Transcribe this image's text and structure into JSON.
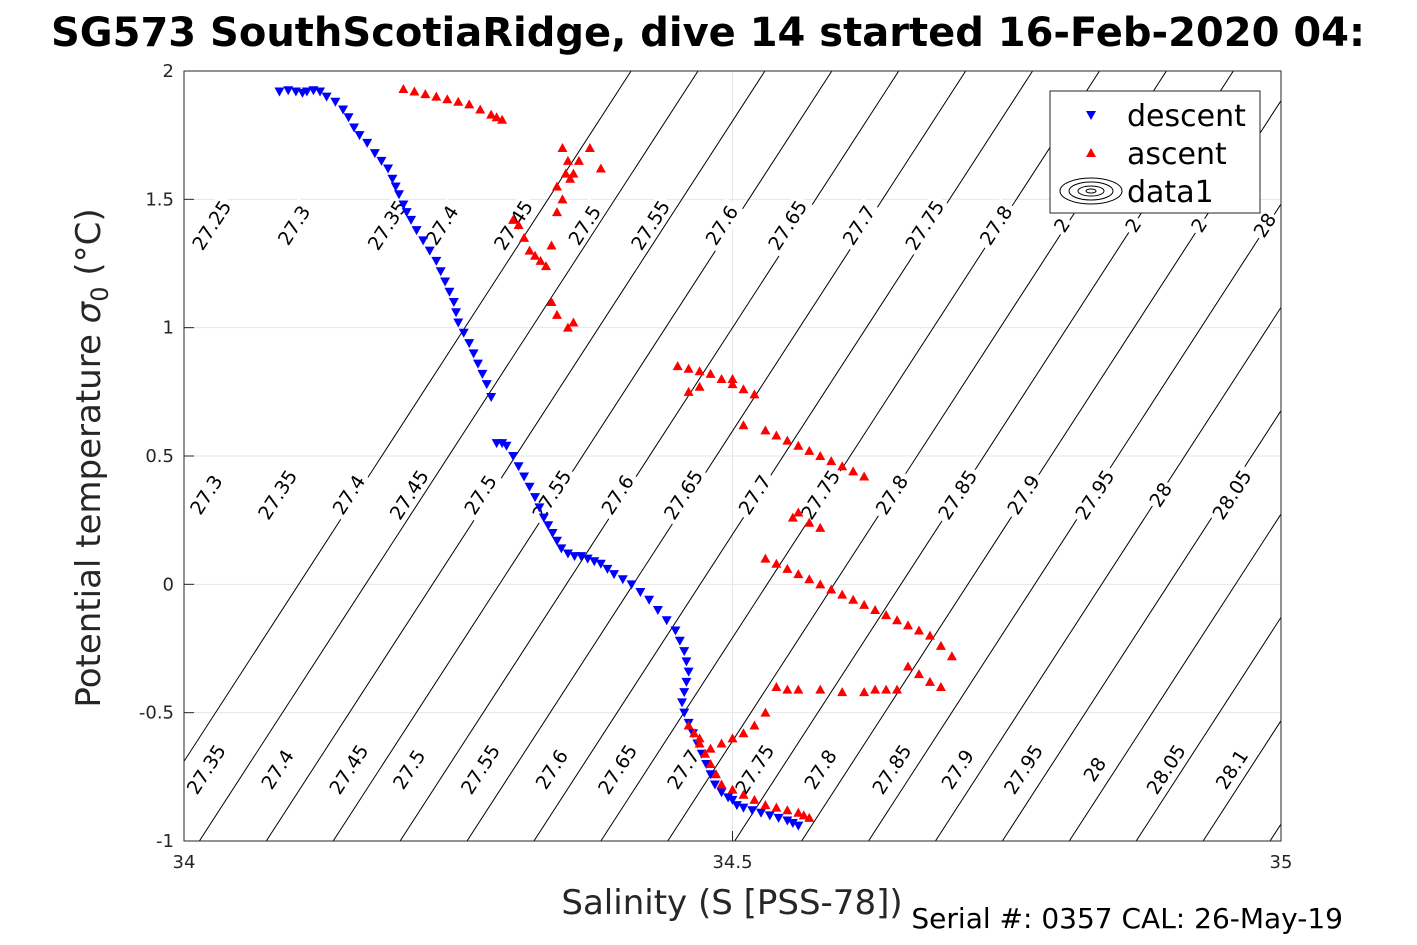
{
  "chart_data": {
    "type": "scatter",
    "title": "SG573 SouthScotiaRidge, dive 14 started 16-Feb-2020 04:",
    "xlabel": "Salinity (S [PSS-78])",
    "ylabel": "Potential temperature σ 0 (°C)",
    "ylabel_parts": {
      "main": "Potential temperature ",
      "greek": "σ",
      "sub": "0",
      "unit": " (°C)"
    },
    "footer": "Serial #: 0357  CAL: 26-May-19",
    "xlim": [
      34,
      35
    ],
    "ylim": [
      -1,
      2
    ],
    "xticks": [
      34,
      34.5,
      35
    ],
    "xtick_labels": [
      "34",
      "34.5",
      "35"
    ],
    "yticks": [
      2,
      1.5,
      1,
      0.5,
      0,
      -0.5,
      -1
    ],
    "ytick_labels": [
      "2",
      "1.5",
      "1",
      "0.5",
      "0",
      "-0.5",
      "-1"
    ],
    "grid": true,
    "legend_position": "top-right",
    "legend": [
      {
        "label": "descent",
        "marker": "triangle-down",
        "color": "#0000ff"
      },
      {
        "label": "ascent",
        "marker": "triangle-up",
        "color": "#ff0000"
      },
      {
        "label": "data1",
        "marker": "contour",
        "color": "#000000"
      }
    ],
    "contours": {
      "color": "#000000",
      "levels": [
        27.25,
        27.3,
        27.35,
        27.4,
        27.45,
        27.5,
        27.55,
        27.6,
        27.65,
        27.7,
        27.75,
        27.8,
        27.85,
        27.9,
        27.95,
        28.0,
        28.05,
        28.1
      ],
      "slope_degC_per_psu": 6.6,
      "lines_x_at_ymin": [
        33.953,
        34.014,
        34.075,
        34.136,
        34.197,
        34.258,
        34.319,
        34.38,
        34.441,
        34.502,
        34.563,
        34.624,
        34.685,
        34.746,
        34.807,
        34.868,
        34.929,
        34.99
      ],
      "label_rows": [
        {
          "y": 1.4,
          "labels": [
            {
              "x": 34.025,
              "text": "27.25"
            },
            {
              "x": 34.1,
              "text": "27.3"
            },
            {
              "x": 34.185,
              "text": "27.35"
            },
            {
              "x": 34.235,
              "text": "27.4"
            },
            {
              "x": 34.3,
              "text": "27.45"
            },
            {
              "x": 34.365,
              "text": "27.5"
            },
            {
              "x": 34.425,
              "text": "27.55"
            },
            {
              "x": 34.49,
              "text": "27.6"
            },
            {
              "x": 34.55,
              "text": "27.65"
            },
            {
              "x": 34.615,
              "text": "27.7"
            },
            {
              "x": 34.675,
              "text": "27.75"
            },
            {
              "x": 34.74,
              "text": "27.8"
            },
            {
              "x": 34.8,
              "text": "2"
            },
            {
              "x": 34.865,
              "text": "2"
            },
            {
              "x": 34.925,
              "text": "2"
            },
            {
              "x": 34.985,
              "text": "28"
            }
          ]
        },
        {
          "y": 0.35,
          "labels": [
            {
              "x": 34.02,
              "text": "27.3"
            },
            {
              "x": 34.085,
              "text": "27.35"
            },
            {
              "x": 34.15,
              "text": "27.4"
            },
            {
              "x": 34.205,
              "text": "27.45"
            },
            {
              "x": 34.27,
              "text": "27.5"
            },
            {
              "x": 34.335,
              "text": "27.55"
            },
            {
              "x": 34.395,
              "text": "27.6"
            },
            {
              "x": 34.455,
              "text": "27.65"
            },
            {
              "x": 34.52,
              "text": "27.7"
            },
            {
              "x": 34.58,
              "text": "27.75"
            },
            {
              "x": 34.645,
              "text": "27.8"
            },
            {
              "x": 34.705,
              "text": "27.85"
            },
            {
              "x": 34.765,
              "text": "27.9"
            },
            {
              "x": 34.83,
              "text": "27.95"
            },
            {
              "x": 34.89,
              "text": "28"
            },
            {
              "x": 34.955,
              "text": "28.05"
            }
          ]
        },
        {
          "y": -0.72,
          "labels": [
            {
              "x": 34.02,
              "text": "27.35"
            },
            {
              "x": 34.085,
              "text": "27.4"
            },
            {
              "x": 34.15,
              "text": "27.45"
            },
            {
              "x": 34.205,
              "text": "27.5"
            },
            {
              "x": 34.27,
              "text": "27.55"
            },
            {
              "x": 34.335,
              "text": "27.6"
            },
            {
              "x": 34.395,
              "text": "27.65"
            },
            {
              "x": 34.455,
              "text": "27.7"
            },
            {
              "x": 34.52,
              "text": "27.75"
            },
            {
              "x": 34.58,
              "text": "27.8"
            },
            {
              "x": 34.645,
              "text": "27.85"
            },
            {
              "x": 34.705,
              "text": "27.9"
            },
            {
              "x": 34.765,
              "text": "27.95"
            },
            {
              "x": 34.83,
              "text": "28"
            },
            {
              "x": 34.895,
              "text": "28.05"
            },
            {
              "x": 34.955,
              "text": "28.1"
            }
          ]
        }
      ]
    },
    "series": [
      {
        "name": "descent",
        "marker": "triangle-down",
        "color": "#0000ff",
        "x": [
          34.087,
          34.095,
          34.102,
          34.108,
          34.112,
          34.118,
          34.124,
          34.13,
          34.138,
          34.145,
          34.15,
          34.155,
          34.16,
          34.167,
          34.174,
          34.18,
          34.186,
          34.19,
          34.193,
          34.196,
          34.2,
          34.203,
          34.207,
          34.212,
          34.218,
          34.224,
          34.23,
          34.234,
          34.238,
          34.242,
          34.246,
          34.248,
          34.25,
          34.255,
          34.26,
          34.264,
          34.268,
          34.272,
          34.276,
          34.28,
          34.285,
          34.29,
          34.294,
          34.3,
          34.305,
          34.31,
          34.315,
          34.32,
          34.324,
          34.328,
          34.332,
          34.336,
          34.34,
          34.344,
          34.35,
          34.356,
          34.362,
          34.368,
          34.374,
          34.38,
          34.386,
          34.392,
          34.4,
          34.408,
          34.416,
          34.424,
          34.432,
          34.44,
          34.448,
          34.452,
          34.456,
          34.458,
          34.46,
          34.458,
          34.456,
          34.454,
          34.456,
          34.46,
          34.464,
          34.468,
          34.472,
          34.476,
          34.48,
          34.484,
          34.49,
          34.496,
          34.5,
          34.504,
          34.51,
          34.518,
          34.526,
          34.534,
          34.542,
          34.55,
          34.555,
          34.56
        ],
        "y": [
          1.92,
          1.925,
          1.92,
          1.915,
          1.92,
          1.925,
          1.92,
          1.9,
          1.88,
          1.85,
          1.82,
          1.78,
          1.75,
          1.72,
          1.68,
          1.65,
          1.62,
          1.58,
          1.55,
          1.52,
          1.48,
          1.45,
          1.42,
          1.38,
          1.34,
          1.3,
          1.26,
          1.22,
          1.18,
          1.14,
          1.1,
          1.06,
          1.02,
          0.98,
          0.94,
          0.9,
          0.86,
          0.82,
          0.78,
          0.73,
          0.55,
          0.55,
          0.54,
          0.5,
          0.46,
          0.42,
          0.38,
          0.34,
          0.3,
          0.26,
          0.23,
          0.2,
          0.17,
          0.14,
          0.12,
          0.11,
          0.11,
          0.1,
          0.09,
          0.08,
          0.06,
          0.04,
          0.02,
          0.0,
          -0.03,
          -0.06,
          -0.1,
          -0.14,
          -0.18,
          -0.22,
          -0.26,
          -0.3,
          -0.34,
          -0.38,
          -0.42,
          -0.46,
          -0.5,
          -0.54,
          -0.58,
          -0.62,
          -0.66,
          -0.7,
          -0.74,
          -0.78,
          -0.81,
          -0.83,
          -0.84,
          -0.86,
          -0.87,
          -0.88,
          -0.89,
          -0.9,
          -0.91,
          -0.92,
          -0.93,
          -0.94
        ]
      },
      {
        "name": "ascent",
        "marker": "triangle-up",
        "color": "#ff0000",
        "x": [
          34.2,
          34.21,
          34.22,
          34.23,
          34.24,
          34.25,
          34.26,
          34.27,
          34.28,
          34.285,
          34.29,
          34.3,
          34.305,
          34.31,
          34.315,
          34.32,
          34.325,
          34.33,
          34.335,
          34.34,
          34.345,
          34.34,
          34.348,
          34.35,
          34.345,
          34.352,
          34.355,
          34.36,
          34.37,
          34.38,
          34.35,
          34.355,
          34.34,
          34.335,
          34.45,
          34.46,
          34.47,
          34.48,
          34.49,
          34.5,
          34.51,
          34.52,
          34.46,
          34.47,
          34.5,
          34.51,
          34.53,
          34.54,
          34.55,
          34.56,
          34.57,
          34.58,
          34.59,
          34.6,
          34.61,
          34.62,
          34.56,
          34.555,
          34.57,
          34.58,
          34.53,
          34.54,
          34.55,
          34.56,
          34.57,
          34.58,
          34.59,
          34.6,
          34.61,
          34.62,
          34.63,
          34.64,
          34.65,
          34.66,
          34.67,
          34.68,
          34.69,
          34.7,
          34.66,
          34.67,
          34.68,
          34.69,
          34.65,
          34.64,
          34.63,
          34.62,
          34.6,
          34.58,
          34.56,
          34.55,
          34.54,
          34.53,
          34.52,
          34.51,
          34.5,
          34.49,
          34.48,
          34.47,
          34.46,
          34.465,
          34.47,
          34.475,
          34.48,
          34.485,
          34.49,
          34.5,
          34.51,
          34.52,
          34.53,
          34.54,
          34.55,
          34.56,
          34.565,
          34.57
        ],
        "y": [
          1.93,
          1.92,
          1.91,
          1.9,
          1.89,
          1.88,
          1.87,
          1.85,
          1.83,
          1.82,
          1.81,
          1.42,
          1.4,
          1.35,
          1.3,
          1.28,
          1.26,
          1.24,
          1.32,
          1.45,
          1.5,
          1.55,
          1.6,
          1.65,
          1.7,
          1.58,
          1.6,
          1.65,
          1.7,
          1.62,
          1.0,
          1.02,
          1.05,
          1.1,
          0.85,
          0.84,
          0.83,
          0.82,
          0.8,
          0.78,
          0.76,
          0.74,
          0.75,
          0.77,
          0.8,
          0.62,
          0.6,
          0.58,
          0.56,
          0.54,
          0.52,
          0.5,
          0.48,
          0.46,
          0.44,
          0.42,
          0.28,
          0.26,
          0.24,
          0.22,
          0.1,
          0.08,
          0.06,
          0.04,
          0.02,
          0.0,
          -0.02,
          -0.04,
          -0.06,
          -0.08,
          -0.1,
          -0.12,
          -0.14,
          -0.16,
          -0.18,
          -0.2,
          -0.24,
          -0.28,
          -0.32,
          -0.35,
          -0.38,
          -0.4,
          -0.41,
          -0.41,
          -0.41,
          -0.42,
          -0.42,
          -0.41,
          -0.41,
          -0.41,
          -0.4,
          -0.5,
          -0.55,
          -0.58,
          -0.6,
          -0.62,
          -0.64,
          -0.6,
          -0.55,
          -0.58,
          -0.62,
          -0.66,
          -0.7,
          -0.74,
          -0.78,
          -0.8,
          -0.82,
          -0.84,
          -0.86,
          -0.87,
          -0.88,
          -0.89,
          -0.9,
          -0.91
        ]
      }
    ]
  }
}
